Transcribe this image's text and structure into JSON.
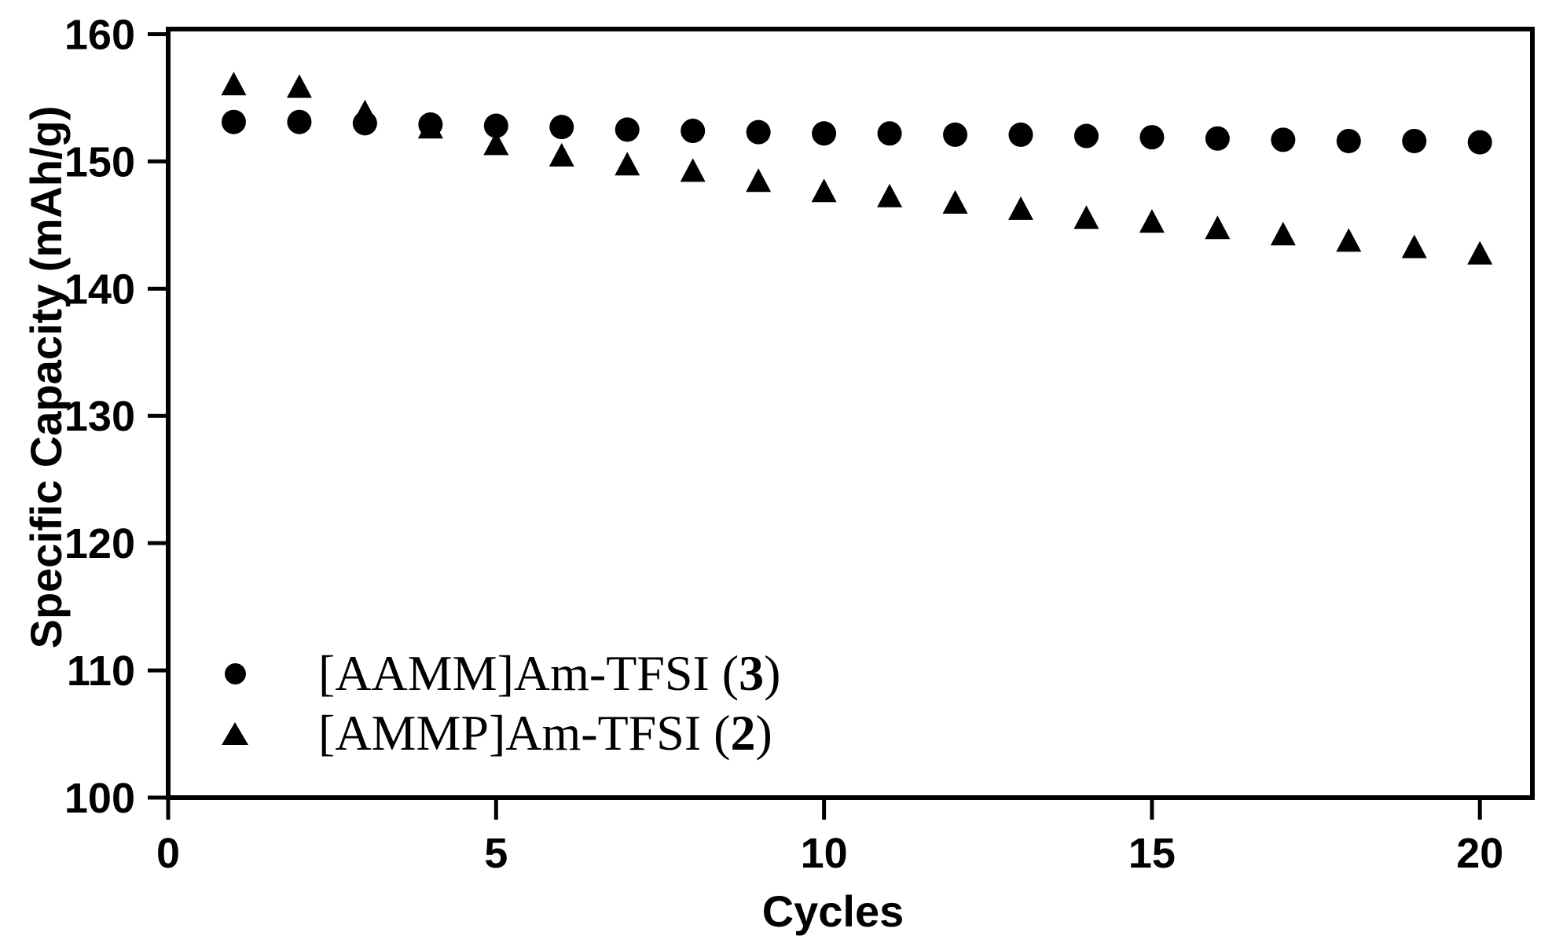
{
  "chart_data": {
    "type": "scatter",
    "title": "",
    "xlabel": "Cycles",
    "ylabel": "Specific Capacity (mAh/g)",
    "xlim": [
      0,
      20.8
    ],
    "ylim": [
      100,
      160.4
    ],
    "x_ticks": [
      0,
      5,
      10,
      15,
      20
    ],
    "y_ticks": [
      100,
      110,
      120,
      130,
      140,
      150,
      160
    ],
    "grid": false,
    "legend_position": "lower-left-inside",
    "marker_color": "#000000",
    "background_color": "#ffffff",
    "x": [
      1,
      2,
      3,
      4,
      5,
      6,
      7,
      8,
      9,
      10,
      11,
      12,
      13,
      14,
      15,
      16,
      17,
      18,
      19,
      20
    ],
    "series": [
      {
        "name": "[AAMM]Am-TFSI (3)",
        "legend_prefix": "[AAMM]Am-TFSI (",
        "legend_bold": "3",
        "legend_suffix": ")",
        "marker": "circle",
        "values": [
          153.1,
          153.1,
          153.0,
          152.9,
          152.8,
          152.7,
          152.5,
          152.4,
          152.3,
          152.2,
          152.2,
          152.1,
          152.1,
          152.0,
          151.9,
          151.8,
          151.7,
          151.6,
          151.6,
          151.5
        ]
      },
      {
        "name": "[AMMP]Am-TFSI (2)",
        "legend_prefix": "[AMMP]Am-TFSI (",
        "legend_bold": "2",
        "legend_suffix": ")",
        "marker": "triangle",
        "values": [
          156.0,
          155.8,
          153.8,
          152.6,
          151.3,
          150.4,
          149.7,
          149.2,
          148.4,
          147.6,
          147.2,
          146.7,
          146.2,
          145.5,
          145.2,
          144.7,
          144.2,
          143.7,
          143.2,
          142.7
        ]
      }
    ]
  }
}
